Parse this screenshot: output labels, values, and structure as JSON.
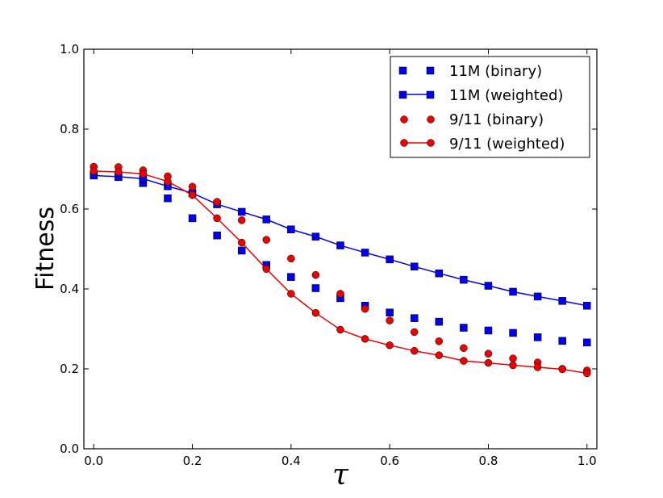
{
  "chart_data": {
    "type": "line",
    "title": "",
    "xlabel": "τ",
    "ylabel": "Fitness",
    "xlim": [
      -0.02,
      1.02
    ],
    "ylim": [
      0.0,
      1.0
    ],
    "xticks": [
      0.0,
      0.2,
      0.4,
      0.6,
      0.8,
      1.0
    ],
    "xtick_labels": [
      "0.0",
      "0.2",
      "0.4",
      "0.6",
      "0.8",
      "1.0"
    ],
    "yticks": [
      0.0,
      0.2,
      0.4,
      0.6,
      0.8,
      1.0
    ],
    "ytick_labels": [
      "0.0",
      "0.2",
      "0.4",
      "0.6",
      "0.8",
      "1.0"
    ],
    "grid": false,
    "legend_position": "top-right",
    "x": [
      0.0,
      0.05,
      0.1,
      0.15,
      0.2,
      0.25,
      0.3,
      0.35,
      0.4,
      0.45,
      0.5,
      0.55,
      0.6,
      0.65,
      0.7,
      0.75,
      0.8,
      0.85,
      0.9,
      0.95,
      1.0
    ],
    "series": [
      {
        "name": "11M  (binary)",
        "color": "#0000ee",
        "marker": "square",
        "line": false,
        "values": [
          0.685,
          0.68,
          0.665,
          0.627,
          0.577,
          0.534,
          0.496,
          0.46,
          0.43,
          0.402,
          0.377,
          0.358,
          0.341,
          0.327,
          0.318,
          0.303,
          0.296,
          0.29,
          0.279,
          0.27,
          0.266
        ]
      },
      {
        "name": "11M  (weighted)",
        "color": "#0000ee",
        "marker": "square",
        "line": true,
        "values": [
          0.684,
          0.681,
          0.676,
          0.657,
          0.64,
          0.612,
          0.593,
          0.574,
          0.549,
          0.531,
          0.509,
          0.491,
          0.474,
          0.456,
          0.439,
          0.423,
          0.408,
          0.393,
          0.381,
          0.37,
          0.358
        ]
      },
      {
        "name": "9/11 (binary)",
        "color": "#ee0000",
        "marker": "circle",
        "line": false,
        "values": [
          0.706,
          0.705,
          0.697,
          0.682,
          0.656,
          0.618,
          0.572,
          0.523,
          0.476,
          0.435,
          0.388,
          0.35,
          0.321,
          0.292,
          0.269,
          0.252,
          0.238,
          0.226,
          0.216,
          0.2,
          0.196
        ]
      },
      {
        "name": "9/11 (weighted)",
        "color": "#ee0000",
        "marker": "circle",
        "line": true,
        "values": [
          0.695,
          0.693,
          0.688,
          0.669,
          0.635,
          0.577,
          0.516,
          0.45,
          0.388,
          0.34,
          0.298,
          0.275,
          0.259,
          0.245,
          0.234,
          0.22,
          0.215,
          0.209,
          0.204,
          0.199,
          0.189
        ]
      }
    ]
  }
}
